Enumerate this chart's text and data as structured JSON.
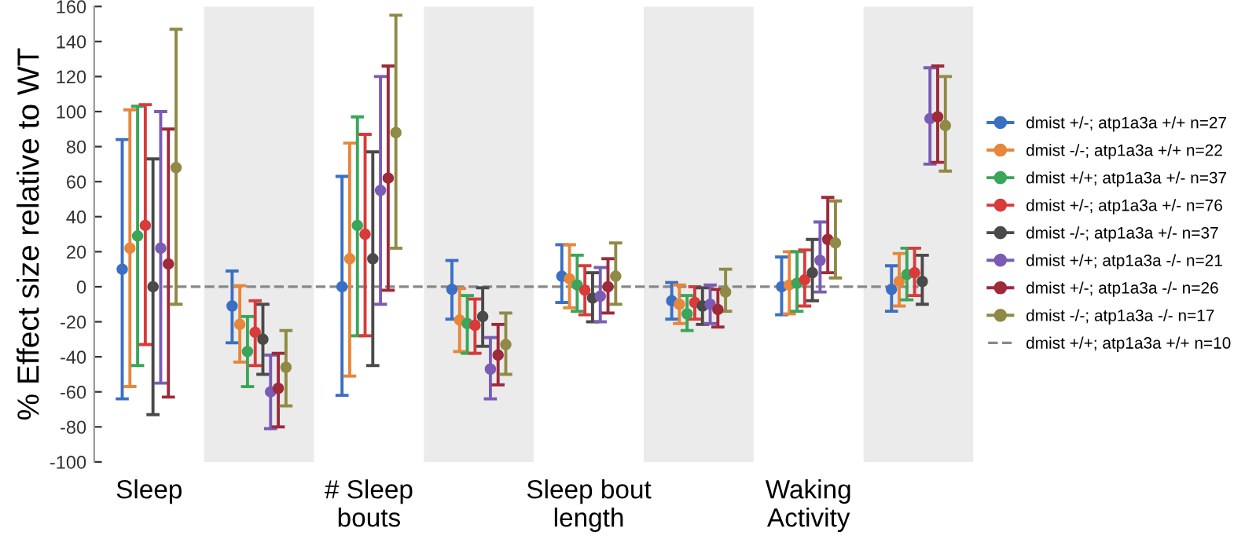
{
  "chart_data": {
    "type": "scatter",
    "ylabel": "% Effect size relative to WT",
    "categories": [
      "Sleep",
      null,
      "# Sleep\nbouts",
      null,
      "Sleep bout\nlength",
      null,
      "Waking\nActivity",
      null
    ],
    "ylim": [
      -100,
      160
    ],
    "yticks": [
      -100,
      -80,
      -60,
      -40,
      -20,
      0,
      20,
      40,
      60,
      80,
      100,
      120,
      140,
      160
    ],
    "grid": false,
    "legend": "right",
    "marker": "circle",
    "series": [
      {
        "name": "dmist +/-; atp1a3a +/+ n=27",
        "color": "#3a6fc4",
        "values": [
          10,
          -11,
          0,
          -1.5,
          6,
          -8,
          0,
          -1.5
        ],
        "errors": [
          [
            -64,
            84
          ],
          [
            -32,
            9
          ],
          [
            -62,
            63
          ],
          [
            -18.5,
            15
          ],
          [
            -9,
            24
          ],
          [
            -18.5,
            2.4
          ],
          [
            -16,
            17
          ],
          [
            -14,
            12
          ]
        ]
      },
      {
        "name": "dmist -/-; atp1a3a +/+ n=22",
        "color": "#e8863a",
        "values": [
          22,
          -21.5,
          16,
          -19,
          4.5,
          -10,
          1,
          3
        ],
        "errors": [
          [
            -57,
            101
          ],
          [
            -43,
            0.6
          ],
          [
            -51,
            82
          ],
          [
            -37,
            -1
          ],
          [
            -12,
            24
          ],
          [
            -21,
            1
          ],
          [
            -15.5,
            20
          ],
          [
            -11,
            19
          ]
        ]
      },
      {
        "name": "dmist +/+; atp1a3a +/- n=37",
        "color": "#3aa65a",
        "values": [
          29,
          -37,
          35,
          -21,
          1,
          -15.5,
          2,
          7
        ],
        "errors": [
          [
            -45,
            103
          ],
          [
            -57,
            -17
          ],
          [
            -28,
            97
          ],
          [
            -38,
            -5
          ],
          [
            -14,
            18
          ],
          [
            -25,
            -5
          ],
          [
            -14,
            20
          ],
          [
            -7.5,
            22
          ]
        ]
      },
      {
        "name": "dmist +/-; atp1a3a +/- n=76",
        "color": "#d93a3a",
        "values": [
          35,
          -26,
          30,
          -22,
          -2,
          -9,
          4,
          8
        ],
        "errors": [
          [
            -33,
            104
          ],
          [
            -45,
            -8
          ],
          [
            -28,
            87
          ],
          [
            -38,
            -7
          ],
          [
            -16,
            12
          ],
          [
            -18.5,
            0
          ],
          [
            -11,
            21
          ],
          [
            -5,
            22
          ]
        ]
      },
      {
        "name": "dmist -/-; atp1a3a +/- n=37",
        "color": "#4a4a4a",
        "values": [
          0,
          -30,
          16,
          -17,
          -6.5,
          -11,
          8,
          3
        ],
        "errors": [
          [
            -73,
            73
          ],
          [
            -50,
            -10
          ],
          [
            -45,
            77
          ],
          [
            -34,
            -0.6
          ],
          [
            -20,
            8
          ],
          [
            -21.5,
            -0.6
          ],
          [
            -8,
            27
          ],
          [
            -10,
            18
          ]
        ]
      },
      {
        "name": "dmist +/+; atp1a3a -/- n=21",
        "color": "#7a5cb5",
        "values": [
          22,
          -60,
          55,
          -47,
          -5.4,
          -10,
          15,
          96
        ],
        "errors": [
          [
            -55,
            100
          ],
          [
            -81,
            -39
          ],
          [
            -10,
            120
          ],
          [
            -64,
            -29
          ],
          [
            -20,
            11
          ],
          [
            -21,
            1
          ],
          [
            -3,
            37
          ],
          [
            70,
            125
          ]
        ]
      },
      {
        "name": "dmist +/-; atp1a3a -/- n=26",
        "color": "#9e2a3a",
        "values": [
          13,
          -58,
          62,
          -39,
          0,
          -13,
          27,
          97
        ],
        "errors": [
          [
            -63,
            90
          ],
          [
            -80,
            -38
          ],
          [
            -2,
            126
          ],
          [
            -56,
            -21.5
          ],
          [
            -15,
            16
          ],
          [
            -23,
            -1.5
          ],
          [
            8,
            51
          ],
          [
            71,
            126
          ]
        ]
      },
      {
        "name": "dmist -/-; atp1a3a -/- n=17",
        "color": "#8f8a45",
        "values": [
          68,
          -46,
          88,
          -33,
          6,
          -3,
          25,
          92
        ],
        "errors": [
          [
            -10,
            147
          ],
          [
            -68,
            -25
          ],
          [
            22,
            155
          ],
          [
            -50,
            -15
          ],
          [
            -10,
            25
          ],
          [
            -14,
            10
          ],
          [
            5,
            49
          ],
          [
            66,
            120
          ]
        ]
      },
      {
        "name": "dmist +/+; atp1a3a +/+ n=10",
        "type": "line",
        "line_style": "dashed",
        "marker": "none",
        "color": "#888888",
        "values": [
          0,
          0,
          0,
          0,
          0,
          0,
          0,
          0
        ]
      }
    ]
  }
}
